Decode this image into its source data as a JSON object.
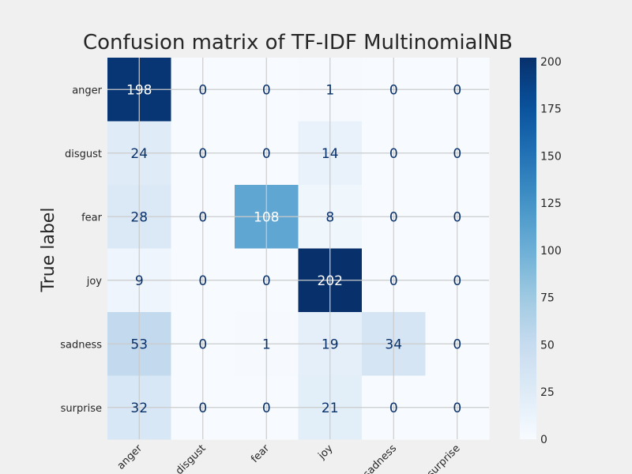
{
  "chart_data": {
    "type": "heatmap",
    "title": "Confusion matrix of TF-IDF MultinomialNB",
    "ylabel": "True label",
    "xlabel": "",
    "row_labels": [
      "anger",
      "disgust",
      "fear",
      "joy",
      "sadness",
      "surprise"
    ],
    "col_labels": [
      "anger",
      "disgust",
      "fear",
      "joy",
      "sadness",
      "surprise"
    ],
    "values": [
      [
        198,
        0,
        0,
        1,
        0,
        0
      ],
      [
        24,
        0,
        0,
        14,
        0,
        0
      ],
      [
        28,
        0,
        108,
        8,
        0,
        0
      ],
      [
        9,
        0,
        0,
        202,
        0,
        0
      ],
      [
        53,
        0,
        1,
        19,
        34,
        0
      ],
      [
        32,
        0,
        0,
        21,
        0,
        0
      ]
    ],
    "colorbar": {
      "min": 0,
      "max": 202,
      "ticks": [
        0,
        25,
        50,
        75,
        100,
        125,
        150,
        175,
        200
      ],
      "colormap": "Blues"
    },
    "grid": true
  }
}
